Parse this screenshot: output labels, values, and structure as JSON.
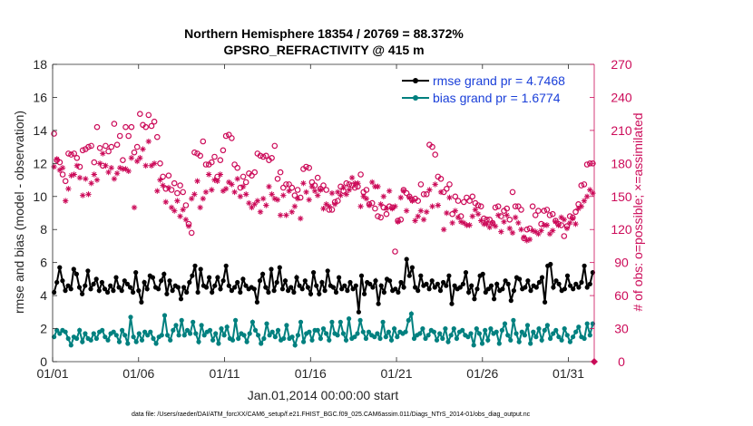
{
  "chart_data": {
    "type": "line",
    "title": "Northern Hemisphere 18354 / 20769 = 88.372%",
    "subtitle": "GPSRO_REFRACTIVITY @ 415 m",
    "xlabel": "Jan.01,2014 00:00:00 start",
    "ylabel": "rmse and bias (model - observation)",
    "ylabel_right": "# of obs: o=possible; ×=assimilated",
    "footer": "data file: /Users/raeder/DAI/ATM_forcXX/CAM6_setup/f.e21.FHIST_BGC.f09_025.CAM6assim.011/Diags_NTrS_2014-01/obs_diag_output.nc",
    "xlim": [
      0,
      31.5
    ],
    "ylim": [
      0,
      18
    ],
    "ylim_right": [
      0,
      270
    ],
    "x_ticks": [
      0,
      5,
      10,
      15,
      20,
      25,
      30
    ],
    "x_tick_labels": [
      "01/01",
      "01/06",
      "01/11",
      "01/16",
      "01/21",
      "01/26",
      "01/31"
    ],
    "y_ticks": [
      0,
      2,
      4,
      6,
      8,
      10,
      12,
      14,
      16,
      18
    ],
    "y_tick_labels": [
      "0",
      "2",
      "4",
      "6",
      "8",
      "10",
      "12",
      "14",
      "16",
      "18"
    ],
    "y_ticks_right": [
      0,
      30,
      60,
      90,
      120,
      150,
      180,
      210,
      240,
      270
    ],
    "y_tick_labels_right": [
      "0",
      "30",
      "60",
      "90",
      "120",
      "150",
      "180",
      "210",
      "240",
      "270"
    ],
    "legend": {
      "placement": "top-right",
      "entries": [
        "rmse grand pr = 4.7468",
        "bias grand pr = 1.6774"
      ]
    },
    "colors": {
      "rmse": "#000000",
      "bias": "#00807f",
      "obs": "#cc0b59",
      "axis": "#262626",
      "legend_text": "#1a3fd9"
    },
    "series": [
      {
        "name": "rmse grand pr = 4.7468",
        "axis": "left",
        "values": [
          4.2,
          4.8,
          5.7,
          4.9,
          4.3,
          4.6,
          4.4,
          5.6,
          5.3,
          4.5,
          4.1,
          4.6,
          5.5,
          4.4,
          4.7,
          5.0,
          4.3,
          4.8,
          4.4,
          4.2,
          4.6,
          4.3,
          5.1,
          4.5,
          4.3,
          4.9,
          4.7,
          4.5,
          4.2,
          5.4,
          4.3,
          3.6,
          4.8,
          4.4,
          5.2,
          5.1,
          4.5,
          4.4,
          4.9,
          5.3,
          4.1,
          4.9,
          4.3,
          4.6,
          4.5,
          3.8,
          4.5,
          4.2,
          4.8,
          5.2,
          5.8,
          4.2,
          5.6,
          4.6,
          4.5,
          5.1,
          4.2,
          4.6,
          5.1,
          4.4,
          4.9,
          5.8,
          4.6,
          4.3,
          4.5,
          4.8,
          4.2,
          5.0,
          4.6,
          4.4,
          4.5,
          4.4,
          3.6,
          4.9,
          5.3,
          4.5,
          4.2,
          5.6,
          4.3,
          4.8,
          5.7,
          4.4,
          4.9,
          4.3,
          4.5,
          4.2,
          5.1,
          4.6,
          4.4,
          4.9,
          4.5,
          4.1,
          5.4,
          4.6,
          4.1,
          4.8,
          4.3,
          5.5,
          4.6,
          4.5,
          4.2,
          5.1,
          4.4,
          4.6,
          4.3,
          4.8,
          4.4,
          4.6,
          3.0,
          5.2,
          4.1,
          4.8,
          4.7,
          4.5,
          4.9,
          3.5,
          4.6,
          4.2,
          5.0,
          4.9,
          4.3,
          4.4,
          4.2,
          4.8,
          4.5,
          6.2,
          5.2,
          5.7,
          4.5,
          4.3,
          5.2,
          4.6,
          4.7,
          4.4,
          4.9,
          4.5,
          4.7,
          4.3,
          4.8,
          4.6,
          5.2,
          3.5,
          4.6,
          4.4,
          4.5,
          4.7,
          5.4,
          4.2,
          4.6,
          3.8,
          4.4,
          5.2,
          5.3,
          4.2,
          4.4,
          4.6,
          3.8,
          4.7,
          4.3,
          4.4,
          4.9,
          4.7,
          3.7,
          4.3,
          5.1,
          5.0,
          4.4,
          4.5,
          4.9,
          4.3,
          4.6,
          4.5,
          4.8,
          5.1,
          3.6,
          5.8,
          5.9,
          4.5,
          4.9,
          4.7,
          4.3,
          4.4,
          5.2,
          4.6,
          4.4,
          4.7,
          4.5,
          4.8,
          5.8,
          4.5,
          4.7,
          5.4
        ]
      },
      {
        "name": "bias grand pr = 1.6774",
        "axis": "left",
        "values": [
          1.5,
          1.9,
          1.7,
          1.9,
          1.8,
          1.4,
          1.0,
          1.5,
          1.4,
          1.9,
          1.2,
          1.7,
          1.4,
          1.3,
          1.7,
          1.4,
          1.8,
          1.9,
          1.5,
          1.3,
          1.7,
          1.8,
          1.6,
          1.2,
          1.9,
          1.6,
          1.1,
          2.7,
          1.5,
          1.2,
          1.7,
          1.3,
          1.8,
          1.6,
          1.8,
          1.4,
          1.1,
          1.5,
          1.6,
          2.8,
          1.6,
          1.3,
          1.9,
          2.2,
          1.6,
          2.5,
          1.6,
          1.9,
          1.7,
          2.4,
          1.7,
          1.2,
          2.2,
          1.6,
          1.8,
          1.9,
          1.3,
          1.7,
          1.1,
          2.0,
          1.6,
          2.1,
          1.4,
          1.3,
          2.5,
          1.4,
          1.7,
          1.6,
          1.2,
          1.7,
          2.4,
          1.9,
          1.6,
          1.1,
          1.4,
          2.3,
          1.6,
          1.8,
          1.5,
          1.9,
          1.3,
          1.4,
          2.2,
          1.4,
          1.5,
          1.0,
          1.6,
          2.4,
          1.2,
          1.7,
          1.8,
          1.3,
          1.9,
          1.9,
          1.4,
          2.0,
          1.7,
          1.3,
          2.4,
          1.7,
          1.6,
          2.4,
          1.7,
          1.3,
          2.6,
          1.4,
          1.5,
          1.7,
          2.5,
          1.8,
          1.4,
          1.8,
          1.6,
          1.5,
          1.7,
          1.4,
          2.4,
          1.5,
          1.8,
          1.3,
          2.0,
          1.5,
          1.8,
          1.7,
          1.8,
          2.5,
          2.9,
          1.4,
          1.6,
          1.7,
          2.0,
          1.4,
          1.6,
          1.9,
          1.8,
          1.3,
          1.7,
          1.4,
          2.0,
          1.2,
          1.6,
          2.0,
          1.4,
          1.8,
          1.9,
          1.6,
          1.5,
          1.7,
          1.0,
          2.0,
          1.7,
          1.1,
          1.9,
          1.3,
          2.0,
          1.7,
          1.8,
          1.1,
          1.9,
          2.3,
          1.6,
          1.3,
          2.5,
          1.7,
          1.2,
          1.8,
          1.6,
          2.2,
          1.1,
          1.8,
          1.5,
          2.0,
          1.3,
          1.9,
          2.2,
          1.4,
          1.7,
          1.9,
          1.5,
          1.3,
          2.0,
          1.6,
          1.2,
          1.5,
          1.8,
          2.1,
          1.5,
          1.4,
          2.3,
          1.6,
          2.3
        ]
      },
      {
        "name": "possible obs (o)",
        "axis": "right",
        "values": [
          207,
          183,
          181,
          170,
          164,
          189,
          188,
          189,
          185,
          177,
          192,
          193,
          195,
          196,
          181,
          213,
          194,
          178,
          196,
          191,
          195,
          216,
          197,
          205,
          183,
          213,
          205,
          213,
          190,
          195,
          225,
          215,
          213,
          224,
          214,
          218,
          204,
          180,
          168,
          157,
          169,
          156,
          162,
          153,
          160,
          154,
          142,
          125,
          117,
          190,
          189,
          187,
          200,
          179,
          179,
          181,
          186,
          168,
          183,
          192,
          205,
          206,
          203,
          179,
          176,
          158,
          168,
          163,
          171,
          169,
          172,
          189,
          187,
          186,
          187,
          183,
          185,
          196,
          166,
          172,
          158,
          161,
          161,
          158,
          151,
          156,
          149,
          175,
          177,
          176,
          163,
          160,
          167,
          157,
          160,
          156,
          138,
          138,
          145,
          146,
          159,
          155,
          162,
          161,
          160,
          158,
          159,
          170,
          154,
          156,
          143,
          144,
          139,
          132,
          131,
          140,
          134,
          141,
          140,
          100,
          128,
          129,
          156,
          153,
          150,
          147,
          148,
          146,
          161,
          152,
          152,
          197,
          195,
          188,
          168,
          166,
          154,
          157,
          161,
          134,
          150,
          146,
          132,
          145,
          149,
          146,
          150,
          144,
          142,
          141,
          130,
          129,
          129,
          126,
          140,
          141,
          132,
          137,
          139,
          129,
          154,
          141,
          141,
          138,
          112,
          120,
          121,
          141,
          133,
          137,
          125,
          137,
          138,
          133,
          134,
          128,
          125,
          124,
          114,
          123,
          132,
          131,
          136,
          143,
          160,
          161,
          179,
          180,
          180
        ]
      },
      {
        "name": "assimilated obs (×)",
        "axis": "right",
        "values": [
          177,
          184,
          174,
          176,
          146,
          157,
          169,
          170,
          178,
          167,
          151,
          166,
          152,
          162,
          170,
          165,
          180,
          189,
          178,
          172,
          176,
          166,
          171,
          176,
          175,
          175,
          173,
          185,
          140,
          182,
          185,
          193,
          178,
          200,
          178,
          180,
          155,
          165,
          160,
          145,
          158,
          140,
          137,
          146,
          132,
          138,
          129,
          123,
          148,
          152,
          164,
          140,
          148,
          154,
          170,
          156,
          165,
          164,
          170,
          155,
          157,
          163,
          161,
          154,
          166,
          150,
          159,
          152,
          144,
          140,
          143,
          146,
          136,
          148,
          142,
          159,
          152,
          148,
          147,
          133,
          151,
          133,
          155,
          136,
          141,
          148,
          130,
          162,
          154,
          147,
          159,
          155,
          151,
          156,
          139,
          143,
          141,
          153,
          143,
          154,
          151,
          158,
          152,
          156,
          167,
          162,
          162,
          141,
          150,
          148,
          142,
          163,
          159,
          159,
          143,
          150,
          139,
          155,
          139,
          141,
          127,
          149,
          155,
          137,
          149,
          146,
          128,
          132,
          137,
          129,
          136,
          156,
          141,
          161,
          142,
          154,
          120,
          135,
          149,
          126,
          137,
          131,
          127,
          126,
          124,
          124,
          132,
          138,
          134,
          128,
          125,
          125,
          122,
          126,
          123,
          133,
          118,
          127,
          133,
          121,
          117,
          131,
          126,
          120,
          113,
          110,
          111,
          119,
          118,
          116,
          119,
          124,
          124,
          116,
          119,
          127,
          124,
          131,
          129,
          121,
          126,
          130,
          125,
          139,
          141,
          146,
          150,
          156,
          153
        ]
      }
    ]
  }
}
